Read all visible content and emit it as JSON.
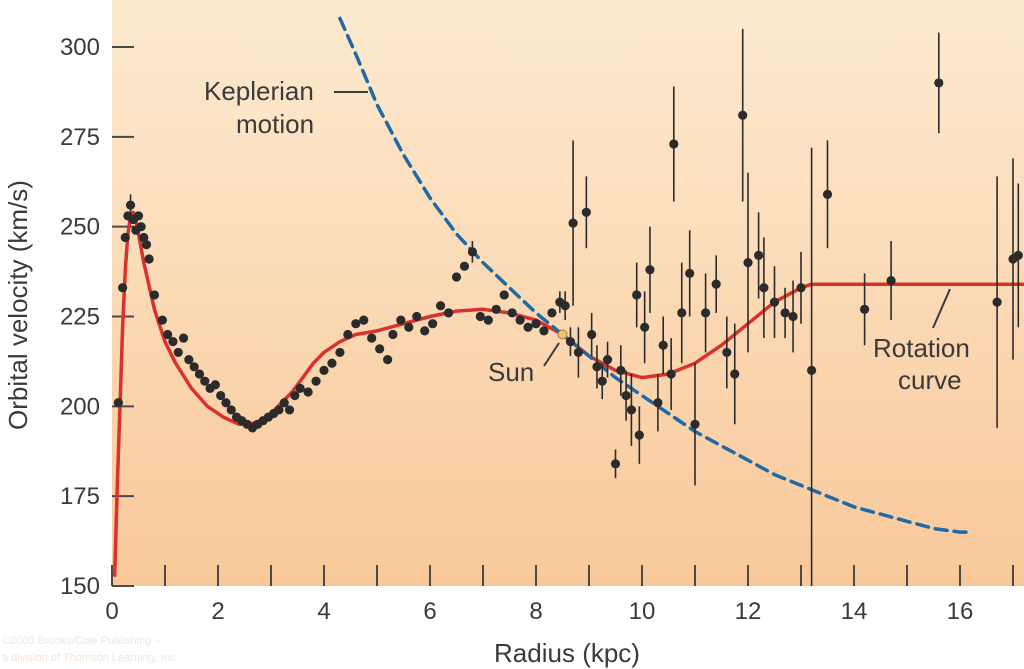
{
  "chart_data": {
    "type": "scatter",
    "xlabel": "Radius (kpc)",
    "ylabel": "Orbital velocity (km/s)",
    "xlim": [
      0,
      17.2
    ],
    "ylim": [
      150,
      312
    ],
    "x_ticks": [
      0,
      2,
      4,
      6,
      8,
      10,
      12,
      14,
      16
    ],
    "x_minor_ticks": [
      1,
      3,
      5,
      7,
      9,
      11,
      13,
      15,
      17
    ],
    "y_ticks": [
      150,
      175,
      200,
      225,
      250,
      275,
      300
    ],
    "background_gradient": [
      "#fdebd0",
      "#f9c89a"
    ],
    "colors": {
      "points": "#2b2b2b",
      "rotation_curve": "#d9312b",
      "keplerian": "#1f6aa6",
      "sun": "#f2c27a",
      "axis_text": "#3a3a3a"
    },
    "annotations": {
      "keplerian_line1": "Keplerian",
      "keplerian_line2": "motion",
      "sun": "Sun",
      "rotation_line1": "Rotation",
      "rotation_line2": "curve"
    },
    "copyright_line1": "©2003 Brooks/Cole Publishing –",
    "copyright_line2": "a division of Thomson Learning, Inc.",
    "sun_position": {
      "x": 8.5,
      "y": 220
    },
    "series": [
      {
        "name": "Rotation curve",
        "style": "solid",
        "x": [
          0.05,
          0.1,
          0.15,
          0.2,
          0.25,
          0.3,
          0.35,
          0.4,
          0.45,
          0.5,
          0.6,
          0.8,
          1.0,
          1.2,
          1.5,
          1.8,
          2.1,
          2.4,
          2.6,
          2.8,
          3.0,
          3.2,
          3.4,
          3.6,
          3.8,
          4.0,
          4.3,
          4.6,
          5.0,
          5.5,
          6.0,
          6.5,
          7.0,
          7.5,
          8.0,
          8.5,
          9.0,
          9.5,
          10.0,
          10.5,
          11.0,
          11.5,
          12.0,
          12.5,
          13.0,
          13.2,
          14,
          15,
          16,
          17.2
        ],
        "y": [
          153,
          178,
          200,
          222,
          238,
          248,
          253,
          254,
          252,
          248,
          240,
          227,
          218,
          212,
          205,
          200,
          197,
          195,
          195,
          196,
          198,
          201,
          204,
          208,
          212,
          215,
          218,
          220,
          221,
          223,
          225,
          226.5,
          227,
          226,
          224,
          220,
          214,
          210,
          208,
          209,
          212,
          217,
          223,
          229,
          233,
          234,
          234,
          234,
          234,
          234
        ]
      },
      {
        "name": "Keplerian motion",
        "style": "dashed",
        "x": [
          4.3,
          4.6,
          5.0,
          5.5,
          6.0,
          6.5,
          7.0,
          7.5,
          8.0,
          8.5,
          9.0,
          9.5,
          10.0,
          10.5,
          11.0,
          11.5,
          12.0,
          12.5,
          13.0,
          13.5,
          14.0,
          14.5,
          15.0,
          15.5,
          16.0,
          16.2
        ],
        "y": [
          308,
          298,
          284,
          270,
          258,
          248,
          240,
          233,
          226,
          220,
          214,
          208,
          203,
          198,
          193,
          189,
          185,
          181,
          178,
          175,
          172,
          170,
          168,
          166,
          165,
          165
        ]
      }
    ],
    "points": [
      {
        "x": 0.12,
        "y": 201,
        "e": 2
      },
      {
        "x": 0.2,
        "y": 233,
        "e": 2
      },
      {
        "x": 0.25,
        "y": 247,
        "e": 2
      },
      {
        "x": 0.3,
        "y": 253,
        "e": 2
      },
      {
        "x": 0.35,
        "y": 256,
        "e": 3
      },
      {
        "x": 0.4,
        "y": 252,
        "e": 2
      },
      {
        "x": 0.45,
        "y": 249,
        "e": 2
      },
      {
        "x": 0.5,
        "y": 253,
        "e": 2
      },
      {
        "x": 0.55,
        "y": 250,
        "e": 2
      },
      {
        "x": 0.6,
        "y": 247,
        "e": 2
      },
      {
        "x": 0.65,
        "y": 245,
        "e": 2
      },
      {
        "x": 0.7,
        "y": 241,
        "e": 2
      },
      {
        "x": 0.8,
        "y": 231,
        "e": 2
      },
      {
        "x": 0.95,
        "y": 224,
        "e": 2
      },
      {
        "x": 1.05,
        "y": 220,
        "e": 2
      },
      {
        "x": 1.15,
        "y": 218,
        "e": 2
      },
      {
        "x": 1.25,
        "y": 215,
        "e": 2
      },
      {
        "x": 1.35,
        "y": 219,
        "e": 2
      },
      {
        "x": 1.45,
        "y": 213,
        "e": 2
      },
      {
        "x": 1.55,
        "y": 211,
        "e": 2
      },
      {
        "x": 1.65,
        "y": 209,
        "e": 2
      },
      {
        "x": 1.75,
        "y": 207,
        "e": 2
      },
      {
        "x": 1.85,
        "y": 205,
        "e": 2
      },
      {
        "x": 1.95,
        "y": 206,
        "e": 2
      },
      {
        "x": 2.05,
        "y": 203,
        "e": 2
      },
      {
        "x": 2.15,
        "y": 201,
        "e": 2
      },
      {
        "x": 2.25,
        "y": 199,
        "e": 2
      },
      {
        "x": 2.35,
        "y": 197,
        "e": 2
      },
      {
        "x": 2.45,
        "y": 196,
        "e": 2
      },
      {
        "x": 2.55,
        "y": 195,
        "e": 2
      },
      {
        "x": 2.65,
        "y": 194,
        "e": 2
      },
      {
        "x": 2.75,
        "y": 195,
        "e": 2
      },
      {
        "x": 2.85,
        "y": 196,
        "e": 2
      },
      {
        "x": 2.95,
        "y": 197,
        "e": 2
      },
      {
        "x": 3.05,
        "y": 198,
        "e": 2
      },
      {
        "x": 3.15,
        "y": 199,
        "e": 2
      },
      {
        "x": 3.25,
        "y": 201,
        "e": 2
      },
      {
        "x": 3.35,
        "y": 199,
        "e": 2
      },
      {
        "x": 3.45,
        "y": 203,
        "e": 2
      },
      {
        "x": 3.55,
        "y": 205,
        "e": 2
      },
      {
        "x": 3.7,
        "y": 204,
        "e": 2
      },
      {
        "x": 3.85,
        "y": 207,
        "e": 2
      },
      {
        "x": 4.0,
        "y": 210,
        "e": 2
      },
      {
        "x": 4.15,
        "y": 212,
        "e": 2
      },
      {
        "x": 4.3,
        "y": 215,
        "e": 2
      },
      {
        "x": 4.45,
        "y": 220,
        "e": 2
      },
      {
        "x": 4.6,
        "y": 223,
        "e": 2
      },
      {
        "x": 4.75,
        "y": 224,
        "e": 2
      },
      {
        "x": 4.9,
        "y": 219,
        "e": 2
      },
      {
        "x": 5.05,
        "y": 216,
        "e": 2
      },
      {
        "x": 5.2,
        "y": 213,
        "e": 2
      },
      {
        "x": 5.3,
        "y": 220,
        "e": 2
      },
      {
        "x": 5.45,
        "y": 224,
        "e": 2
      },
      {
        "x": 5.6,
        "y": 222,
        "e": 2
      },
      {
        "x": 5.75,
        "y": 225,
        "e": 2
      },
      {
        "x": 5.9,
        "y": 221,
        "e": 2
      },
      {
        "x": 6.05,
        "y": 223,
        "e": 2
      },
      {
        "x": 6.2,
        "y": 228,
        "e": 2
      },
      {
        "x": 6.35,
        "y": 226,
        "e": 2
      },
      {
        "x": 6.5,
        "y": 236,
        "e": 2
      },
      {
        "x": 6.65,
        "y": 239,
        "e": 2
      },
      {
        "x": 6.8,
        "y": 243,
        "e": 3
      },
      {
        "x": 6.95,
        "y": 225,
        "e": 2
      },
      {
        "x": 7.1,
        "y": 224,
        "e": 2
      },
      {
        "x": 7.25,
        "y": 227,
        "e": 2
      },
      {
        "x": 7.4,
        "y": 231,
        "e": 2
      },
      {
        "x": 7.55,
        "y": 226,
        "e": 2
      },
      {
        "x": 7.7,
        "y": 224,
        "e": 2
      },
      {
        "x": 7.85,
        "y": 222,
        "e": 2
      },
      {
        "x": 8.0,
        "y": 223,
        "e": 2
      },
      {
        "x": 8.15,
        "y": 221,
        "e": 2
      },
      {
        "x": 8.3,
        "y": 226,
        "e": 2
      },
      {
        "x": 8.45,
        "y": 229,
        "e": 3
      },
      {
        "x": 8.55,
        "y": 228,
        "e": 4
      },
      {
        "x": 8.65,
        "y": 218,
        "e": 4
      },
      {
        "x": 8.7,
        "y": 251,
        "e": 23
      },
      {
        "x": 8.8,
        "y": 215,
        "e": 7
      },
      {
        "x": 8.95,
        "y": 254,
        "e": 10
      },
      {
        "x": 9.05,
        "y": 220,
        "e": 6
      },
      {
        "x": 9.15,
        "y": 211,
        "e": 6
      },
      {
        "x": 9.25,
        "y": 207,
        "e": 5
      },
      {
        "x": 9.35,
        "y": 213,
        "e": 5
      },
      {
        "x": 9.5,
        "y": 184,
        "e": 4
      },
      {
        "x": 9.6,
        "y": 210,
        "e": 7
      },
      {
        "x": 9.7,
        "y": 203,
        "e": 7
      },
      {
        "x": 9.8,
        "y": 199,
        "e": 10
      },
      {
        "x": 9.9,
        "y": 231,
        "e": 9
      },
      {
        "x": 9.95,
        "y": 192,
        "e": 8
      },
      {
        "x": 10.05,
        "y": 222,
        "e": 10
      },
      {
        "x": 10.15,
        "y": 238,
        "e": 12
      },
      {
        "x": 10.3,
        "y": 201,
        "e": 8
      },
      {
        "x": 10.4,
        "y": 217,
        "e": 8
      },
      {
        "x": 10.55,
        "y": 209,
        "e": 10
      },
      {
        "x": 10.6,
        "y": 273,
        "e": 16
      },
      {
        "x": 10.75,
        "y": 226,
        "e": 14
      },
      {
        "x": 10.9,
        "y": 237,
        "e": 12
      },
      {
        "x": 11.0,
        "y": 195,
        "e": 17
      },
      {
        "x": 11.2,
        "y": 226,
        "e": 11
      },
      {
        "x": 11.4,
        "y": 234,
        "e": 8
      },
      {
        "x": 11.6,
        "y": 215,
        "e": 10
      },
      {
        "x": 11.75,
        "y": 209,
        "e": 14
      },
      {
        "x": 11.9,
        "y": 281,
        "e": 24
      },
      {
        "x": 12.0,
        "y": 240,
        "e": 25
      },
      {
        "x": 12.2,
        "y": 242,
        "e": 12
      },
      {
        "x": 12.3,
        "y": 233,
        "e": 14
      },
      {
        "x": 12.5,
        "y": 229,
        "e": 10
      },
      {
        "x": 12.7,
        "y": 226,
        "e": 7
      },
      {
        "x": 12.85,
        "y": 225,
        "e": 10
      },
      {
        "x": 13.0,
        "y": 233,
        "e": 10
      },
      {
        "x": 13.2,
        "y": 210,
        "e": 62
      },
      {
        "x": 13.5,
        "y": 259,
        "e": 15
      },
      {
        "x": 14.2,
        "y": 227,
        "e": 10
      },
      {
        "x": 14.7,
        "y": 235,
        "e": 11
      },
      {
        "x": 15.6,
        "y": 290,
        "e": 14
      },
      {
        "x": 16.7,
        "y": 229,
        "e": 35
      },
      {
        "x": 17.0,
        "y": 241,
        "e": 28
      },
      {
        "x": 17.1,
        "y": 242,
        "e": 20
      }
    ]
  }
}
